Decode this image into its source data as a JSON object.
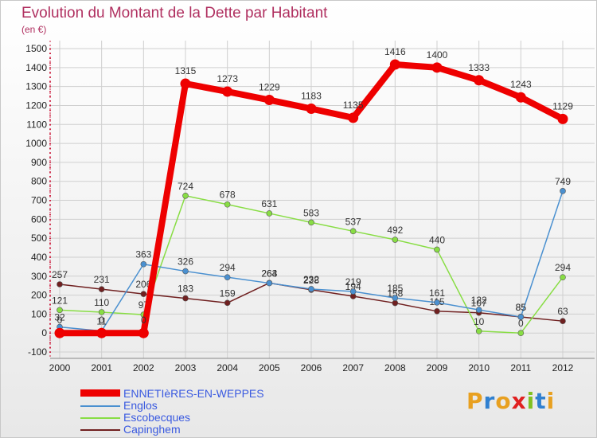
{
  "header": {
    "title": "Evolution du Montant de la Dette par Habitant",
    "unit": "(en €)"
  },
  "chart_data": {
    "type": "line",
    "title": "Evolution du Montant de la Dette par Habitant",
    "ylabel": "(en €)",
    "x": [
      "2000",
      "2001",
      "2002",
      "2003",
      "2004",
      "2005",
      "2006",
      "2007",
      "2008",
      "2009",
      "2010",
      "2011",
      "2012"
    ],
    "ylim": [
      -100,
      1500
    ],
    "yticks": [
      -100,
      0,
      100,
      200,
      300,
      400,
      500,
      600,
      700,
      800,
      900,
      1000,
      1100,
      1200,
      1300,
      1400,
      1500
    ],
    "grid": true,
    "legend_position": "bottom-left",
    "series": [
      {
        "name": "ENNETIèRES-EN-WEPPES",
        "color": "#ee0000",
        "values": [
          0,
          0,
          0,
          1315,
          1273,
          1229,
          1183,
          1135,
          1416,
          1400,
          1333,
          1243,
          1129
        ],
        "labels": [
          "0",
          "0",
          "0",
          "1315",
          "1273",
          "1229",
          "1183",
          "1135",
          "1416",
          "1400",
          "1333",
          "1243",
          "1129"
        ]
      },
      {
        "name": "Englos",
        "color": "#4a90d0",
        "values": [
          32,
          11,
          363,
          326,
          294,
          263,
          232,
          219,
          185,
          161,
          122,
          85,
          749
        ],
        "labels": [
          "32",
          "11",
          "363",
          "326",
          "294",
          "263",
          "232",
          "219",
          "185",
          "161",
          "122",
          "85",
          "749"
        ]
      },
      {
        "name": "Escobecques",
        "color": "#88dd44",
        "values": [
          121,
          110,
          97,
          724,
          678,
          631,
          583,
          537,
          492,
          440,
          10,
          0,
          294
        ],
        "labels": [
          "121",
          "110",
          "97",
          "724",
          "678",
          "631",
          "583",
          "537",
          "492",
          "440",
          "10",
          "0",
          "294"
        ]
      },
      {
        "name": "Capinghem",
        "color": "#702020",
        "values": [
          257,
          231,
          206,
          183,
          159,
          264,
          228,
          194,
          158,
          115,
          107,
          85,
          63
        ],
        "labels": [
          "257",
          "231",
          "206",
          "183",
          "159",
          "264",
          "228",
          "194",
          "158",
          "115",
          "107",
          "85",
          "63"
        ]
      }
    ]
  },
  "logo": {
    "text": "Proxiti",
    "letter_colors": [
      "#e8a020",
      "#3080d0",
      "#e8a020",
      "#e02020",
      "#80c020",
      "#3080d0",
      "#e8a020"
    ]
  }
}
